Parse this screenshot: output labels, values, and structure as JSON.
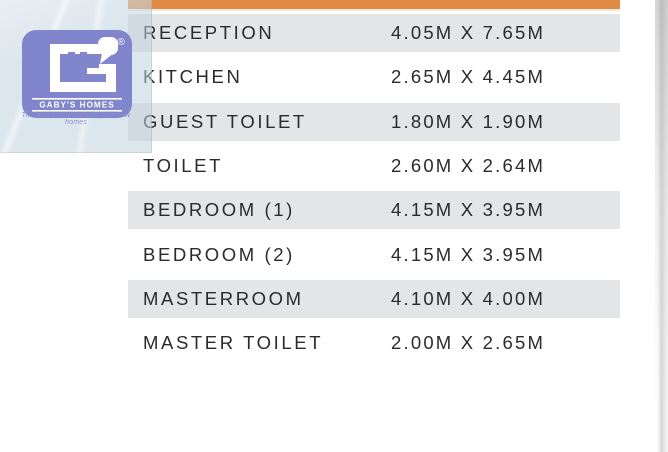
{
  "logo": {
    "brand": "GABY'S HOMES",
    "tagline": "The best experience for your new homes",
    "registered_mark": "®",
    "monogram": "GH",
    "colors": {
      "purple": "#8185CB",
      "panel_tint": "#DBE5EC"
    }
  },
  "table": {
    "accent_color": "#DF8A45",
    "alt_row_color": "#E3E5E6",
    "text_color": "#2B2B2B",
    "columns": [
      "room",
      "size"
    ],
    "rows": [
      {
        "room": "RECEPTION",
        "size": "4.05M X 7.65M"
      },
      {
        "room": "KITCHEN",
        "size": "2.65M X 4.45M"
      },
      {
        "room": "GUEST TOILET",
        "size": "1.80M X 1.90M"
      },
      {
        "room": "TOILET",
        "size": "2.60M X 2.64M"
      },
      {
        "room": "BEDROOM (1)",
        "size": "4.15M X 3.95M"
      },
      {
        "room": "BEDROOM (2)",
        "size": "4.15M X 3.95M"
      },
      {
        "room": "MASTERROOM",
        "size": "4.10M X 4.00M"
      },
      {
        "room": "MASTER TOILET",
        "size": "2.00M X 2.65M"
      }
    ]
  }
}
